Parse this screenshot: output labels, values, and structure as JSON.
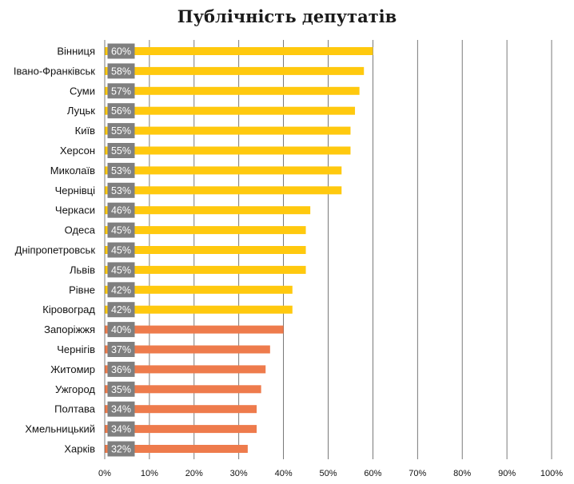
{
  "chart_data": {
    "type": "bar",
    "orientation": "horizontal",
    "title": "Публічність депутатів",
    "xlabel": "",
    "ylabel": "",
    "xlim": [
      0,
      100
    ],
    "ticks": [
      0,
      10,
      20,
      30,
      40,
      50,
      60,
      70,
      80,
      90,
      100
    ],
    "tick_suffix": "%",
    "grid": true,
    "legend": "none",
    "colors": {
      "high": "#FFC90E",
      "low": "#EE7B4C",
      "label_box": "#7F7F7F"
    },
    "categories": [
      "Вінниця",
      "Івано-Франківськ",
      "Суми",
      "Луцьк",
      "Київ",
      "Херсон",
      "Миколаїв",
      "Чернівці",
      "Черкаси",
      "Одеса",
      "Дніпропетровськ",
      "Львів",
      "Рівне",
      "Кіровоград",
      "Запоріжжя",
      "Чернігів",
      "Житомир",
      "Ужгород",
      "Полтава",
      "Хмельницький",
      "Харків"
    ],
    "values": [
      60,
      58,
      57,
      56,
      55,
      55,
      53,
      53,
      46,
      45,
      45,
      45,
      42,
      42,
      40,
      37,
      36,
      35,
      34,
      34,
      32
    ],
    "value_labels": [
      "60%",
      "58%",
      "57%",
      "56%",
      "55%",
      "55%",
      "53%",
      "53%",
      "46%",
      "45%",
      "45%",
      "45%",
      "42%",
      "42%",
      "40%",
      "37%",
      "36%",
      "35%",
      "34%",
      "34%",
      "32%"
    ],
    "color_groups": [
      "high",
      "high",
      "high",
      "high",
      "high",
      "high",
      "high",
      "high",
      "high",
      "high",
      "high",
      "high",
      "high",
      "high",
      "low",
      "low",
      "low",
      "low",
      "low",
      "low",
      "low"
    ]
  }
}
